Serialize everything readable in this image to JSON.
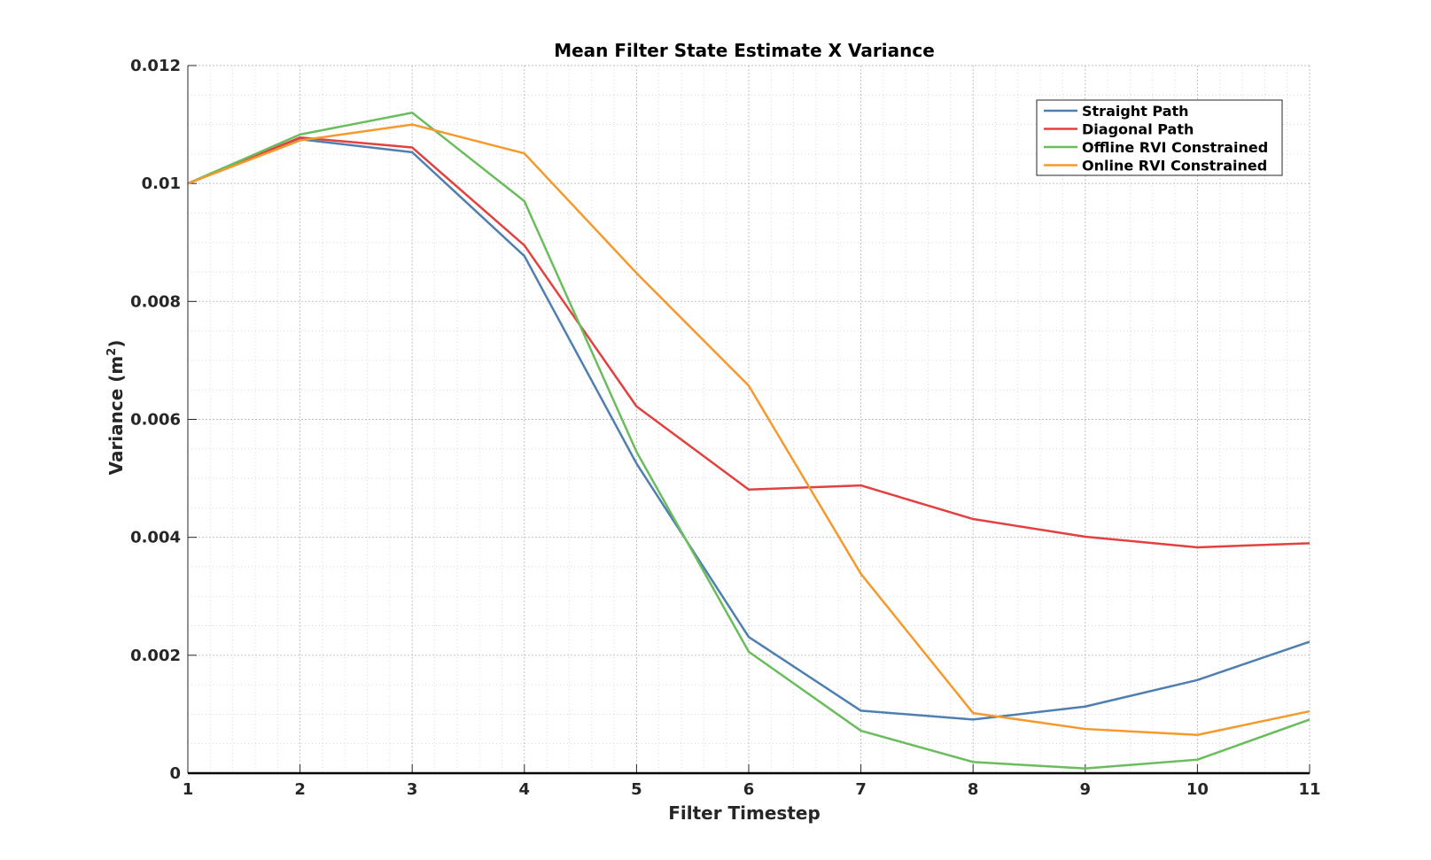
{
  "chart_data": {
    "type": "line",
    "title": "Mean Filter State Estimate X Variance",
    "xlabel": "Filter Timestep",
    "ylabel_main": "Variance (m",
    "ylabel_sup": "2",
    "ylabel_close": ")",
    "xlim": [
      1,
      11
    ],
    "ylim": [
      0,
      0.012
    ],
    "xticks": [
      "1",
      "2",
      "3",
      "4",
      "5",
      "6",
      "7",
      "8",
      "9",
      "10",
      "11"
    ],
    "yticks": [
      "0",
      "0.002",
      "0.004",
      "0.006",
      "0.008",
      "0.01",
      "0.012"
    ],
    "grid": true,
    "minor_grid": true,
    "legend_position": "top-right",
    "x": [
      1,
      2,
      3,
      4,
      5,
      6,
      7,
      8,
      9,
      10,
      11
    ],
    "series": [
      {
        "name": "Straight Path",
        "color": "#4f7fb1",
        "values": [
          0.01,
          0.01075,
          0.01053,
          0.00877,
          0.00525,
          0.00231,
          0.00106,
          0.00091,
          0.00113,
          0.00158,
          0.00223
        ]
      },
      {
        "name": "Diagonal Path",
        "color": "#e2413f",
        "values": [
          0.01,
          0.01078,
          0.01061,
          0.00895,
          0.00622,
          0.00481,
          0.00488,
          0.00431,
          0.00401,
          0.00383,
          0.0039
        ]
      },
      {
        "name": "Offline RVI Constrained",
        "color": "#6abd5c",
        "values": [
          0.01,
          0.01083,
          0.0112,
          0.0097,
          0.00545,
          0.00206,
          0.00072,
          0.00019,
          8e-05,
          0.00023,
          0.00091
        ]
      },
      {
        "name": "Online RVI Constrained",
        "color": "#f5992c",
        "values": [
          0.01,
          0.01073,
          0.011,
          0.01051,
          0.00848,
          0.00657,
          0.00338,
          0.00102,
          0.00075,
          0.00065,
          0.00105
        ]
      }
    ]
  }
}
